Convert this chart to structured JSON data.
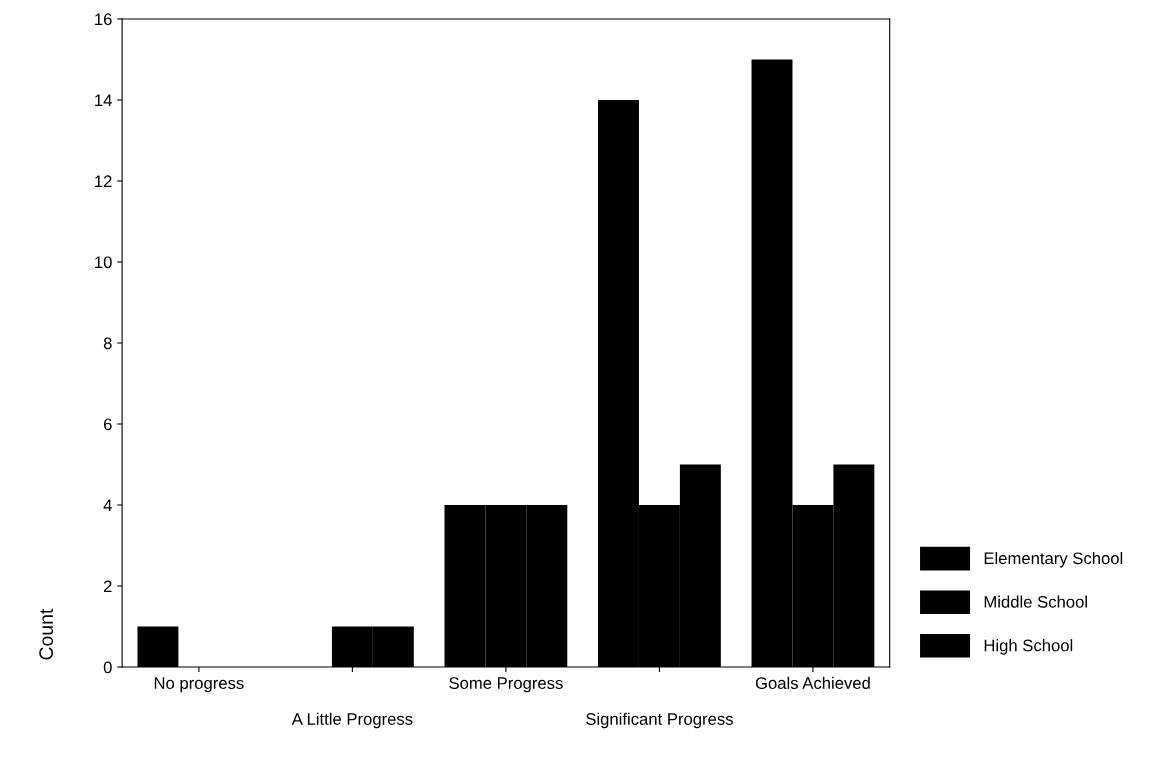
{
  "chart_data": {
    "type": "bar",
    "ylabel": "Count",
    "categories": [
      "No progress",
      "A Little Progress",
      "Some Progress",
      "Significant Progress",
      "Goals Achieved"
    ],
    "series": [
      {
        "name": "Elementary School",
        "color": "#000000",
        "values": [
          1,
          0,
          4,
          14,
          15
        ]
      },
      {
        "name": "Middle School",
        "color": "#000000",
        "values": [
          0,
          1,
          4,
          4,
          4
        ]
      },
      {
        "name": "High School",
        "color": "#000000",
        "values": [
          0,
          1,
          4,
          5,
          5
        ]
      }
    ],
    "ylim": [
      0,
      16
    ],
    "yticks": [
      0,
      2,
      4,
      6,
      8,
      10,
      12,
      14,
      16
    ],
    "grid": false,
    "legend": "right"
  }
}
